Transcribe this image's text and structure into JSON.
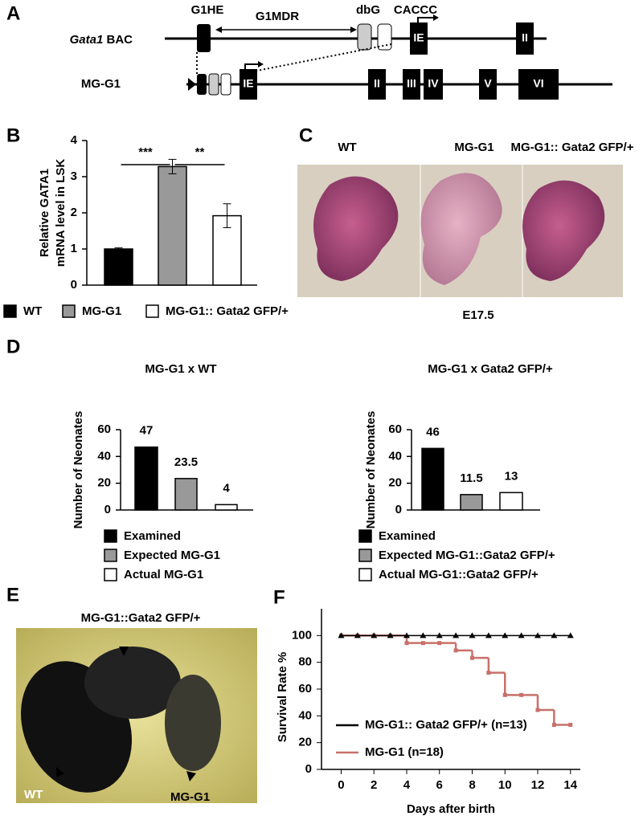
{
  "panels": {
    "A": {
      "letter": "A",
      "g1he": "G1HE",
      "g1mdr": "G1MDR",
      "dbg": "dbG",
      "caccc": "CACCC",
      "rows": [
        {
          "label_italic": "Gata1",
          "label": "BAC",
          "exons": [
            "IE",
            "II"
          ]
        },
        {
          "label": "MG-G1",
          "exons": [
            "IE",
            "II",
            "III",
            "IV",
            "V",
            "VI"
          ]
        }
      ]
    },
    "B": {
      "letter": "B"
    },
    "C": {
      "letter": "C",
      "labels": [
        "WT",
        "MG-G1",
        "MG-G1:: Gata2 GFP/+"
      ],
      "caption": "E17.5"
    },
    "D": {
      "letter": "D"
    },
    "E": {
      "letter": "E",
      "title": "MG-G1::Gata2 GFP/+",
      "labels": [
        "WT",
        "MG-G1"
      ]
    },
    "F": {
      "letter": "F"
    }
  },
  "chart_data": [
    {
      "type": "bar",
      "y_label": [
        "Relative GATA1",
        "mRNA level in LSK"
      ],
      "categories": [
        null
      ],
      "series": [
        {
          "name": "WT",
          "color": "#000000",
          "values": [
            1.0
          ],
          "errors": [
            0.03
          ]
        },
        {
          "name": "MG-G1",
          "color": "#999999",
          "values": [
            3.28
          ],
          "errors": [
            0.2
          ]
        },
        {
          "name": "MG-G1:: Gata2 GFP/+",
          "color": "#ffffff",
          "values": [
            1.92
          ],
          "errors": [
            0.33
          ]
        }
      ],
      "annotations": [
        "***",
        "**"
      ],
      "ylim": [
        0,
        4
      ],
      "yticks": [
        0,
        1,
        2,
        3,
        4
      ]
    },
    {
      "type": "bar",
      "title": "MG-G1  x  WT",
      "y_label": "Number of Neonates",
      "categories": [
        null
      ],
      "show_values": true,
      "series": [
        {
          "name": "Examined",
          "color": "#000000",
          "values": [
            47
          ]
        },
        {
          "name": "Expected MG-G1",
          "color": "#999999",
          "values": [
            23.5
          ]
        },
        {
          "name": "Actual MG-G1",
          "color": "#ffffff",
          "values": [
            4
          ]
        }
      ],
      "ylim": [
        0,
        60
      ],
      "yticks": [
        0,
        20,
        40,
        60
      ]
    },
    {
      "type": "bar",
      "title": "MG-G1  x  Gata2 GFP/+",
      "y_label": "Number of Neonates",
      "categories": [
        null
      ],
      "show_values": true,
      "series": [
        {
          "name": "Examined",
          "color": "#000000",
          "values": [
            46
          ]
        },
        {
          "name": "Expected MG-G1::Gata2 GFP/+",
          "color": "#999999",
          "values": [
            11.5
          ]
        },
        {
          "name": "Actual MG-G1::Gata2 GFP/+",
          "color": "#ffffff",
          "values": [
            13
          ]
        }
      ],
      "ylim": [
        0,
        60
      ],
      "yticks": [
        0,
        20,
        40,
        60
      ]
    },
    {
      "type": "line",
      "x_label": "Days after birth",
      "y_label": "Survival Rate %",
      "x": [
        0,
        1,
        2,
        3,
        4,
        5,
        6,
        7,
        8,
        9,
        10,
        11,
        12,
        13,
        14
      ],
      "series": [
        {
          "name": "MG-G1 (n=18)",
          "color": "#c8706a",
          "marker": "square",
          "values": [
            100,
            100,
            100,
            100,
            94.4,
            94.4,
            94.4,
            88.9,
            83.3,
            72.2,
            55.6,
            55.6,
            44.4,
            33.3,
            33.3
          ]
        },
        {
          "name": "MG-G1:: Gata2 GFP/+ (n=13)",
          "color": "#000000",
          "marker": "triangle",
          "values": [
            100,
            100,
            100,
            100,
            100,
            100,
            100,
            100,
            100,
            100,
            100,
            100,
            100,
            100,
            100
          ]
        }
      ],
      "xlim": [
        -1.2,
        14.6
      ],
      "xticks": [
        0,
        2,
        4,
        6,
        8,
        10,
        12,
        14
      ],
      "ylim": [
        0,
        120
      ],
      "yticks": [
        0,
        20,
        40,
        60,
        80,
        100
      ]
    }
  ]
}
